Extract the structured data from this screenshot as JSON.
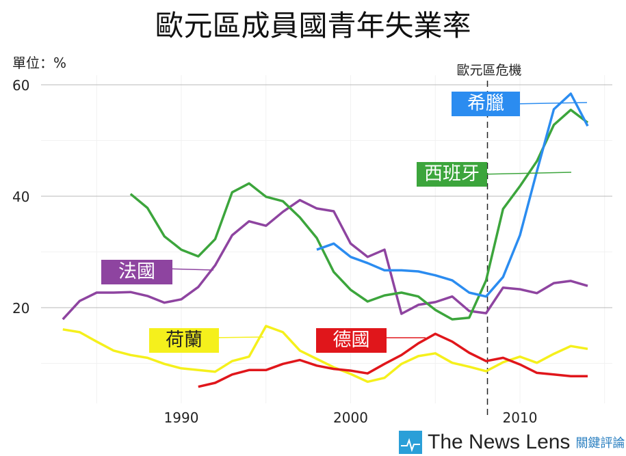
{
  "chart_data": {
    "type": "line",
    "title": "歐元區成員國青年失業率",
    "ylabel": "單位：%",
    "xlim": [
      1982.3,
      2015.2
    ],
    "ylim": [
      0,
      60
    ],
    "y_ticks": [
      20,
      40,
      60
    ],
    "x_ticks": [
      1990,
      2000,
      2010
    ],
    "grid": true,
    "annotation": {
      "label": "歐元區危機",
      "x": 2008
    },
    "series": [
      {
        "name": "希臘",
        "color": "#2b8cf0",
        "x_start": 1998,
        "values": [
          30.4,
          31.5,
          29.1,
          28.0,
          26.7,
          26.7,
          26.5,
          25.8,
          24.9,
          22.7,
          22.0,
          25.5,
          33.0,
          44.5,
          55.6,
          58.4,
          52.6
        ]
      },
      {
        "name": "西班牙",
        "color": "#3ca53c",
        "x_start": 1987,
        "values": [
          40.4,
          37.9,
          32.8,
          30.4,
          29.2,
          32.3,
          40.7,
          42.3,
          39.9,
          39.1,
          36.2,
          32.5,
          26.4,
          23.2,
          21.1,
          22.2,
          22.7,
          22.0,
          19.6,
          17.9,
          18.2,
          24.9,
          37.7,
          41.8,
          46.3,
          52.8,
          55.5,
          53.2
        ]
      },
      {
        "name": "法國",
        "color": "#8e44a0",
        "x_start": 1983,
        "values": [
          17.9,
          21.2,
          22.7,
          22.7,
          22.8,
          22.1,
          20.9,
          21.5,
          23.7,
          27.6,
          33.0,
          35.5,
          34.7,
          37.2,
          39.3,
          37.8,
          37.3,
          31.5,
          29.1,
          30.4,
          18.9,
          20.5,
          21.0,
          22.0,
          19.4,
          19.0,
          23.6,
          23.3,
          22.6,
          24.4,
          24.8,
          23.9
        ]
      },
      {
        "name": "荷蘭",
        "color": "#f5f01c",
        "x_start": 1983,
        "values": [
          16.1,
          15.6,
          13.9,
          12.3,
          11.5,
          11.0,
          9.9,
          9.1,
          8.8,
          8.5,
          10.4,
          11.2,
          16.7,
          15.6,
          12.3,
          10.8,
          9.3,
          8.1,
          6.7,
          7.4,
          9.9,
          11.3,
          11.8,
          10.1,
          9.4,
          8.6,
          10.2,
          11.2,
          10.1,
          11.7,
          13.1,
          12.6
        ]
      },
      {
        "name": "德國",
        "color": "#e0161b",
        "x_start": 1991,
        "values": [
          5.8,
          6.5,
          8.0,
          8.8,
          8.8,
          9.9,
          10.6,
          9.6,
          9.0,
          8.7,
          8.2,
          9.9,
          11.5,
          13.6,
          15.3,
          13.9,
          11.9,
          10.4,
          11.0,
          9.8,
          8.3,
          8.0,
          7.7,
          7.7
        ]
      }
    ]
  },
  "labels": {
    "greece": "希臘",
    "spain": "西班牙",
    "france": "法國",
    "nl": "荷蘭",
    "germany": "德國"
  },
  "logo": {
    "text": "The News Lens",
    "cn": "關鍵評論"
  }
}
